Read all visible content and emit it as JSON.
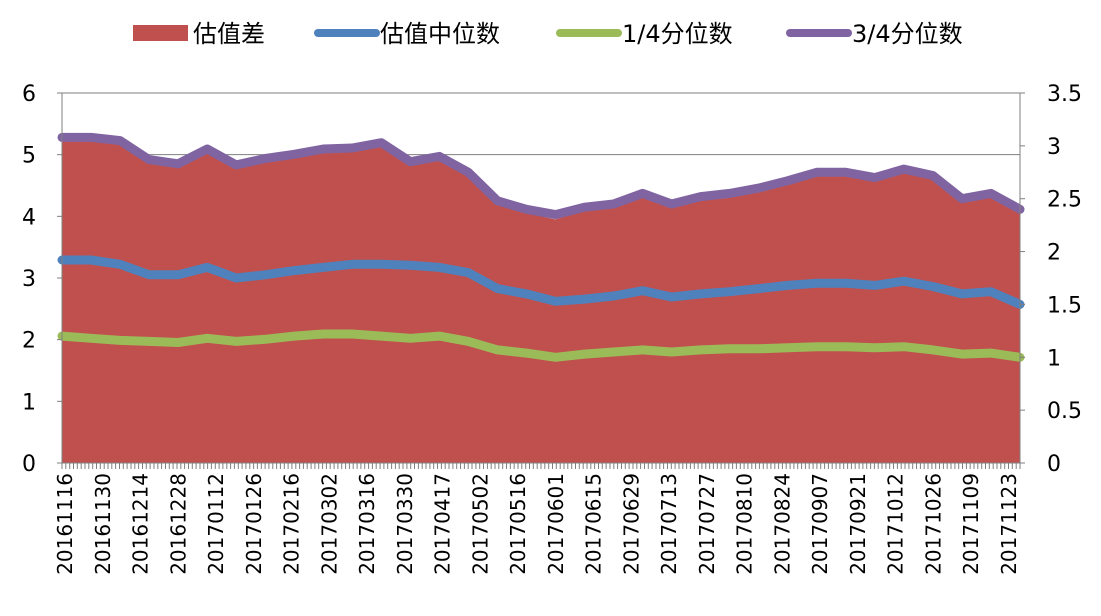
{
  "colors": {
    "diff": "#C0504D",
    "median": "#4F81BD",
    "q1": "#9BBB59",
    "q3": "#8064A2",
    "grid": "#7F7F7F",
    "axis": "#7F7F7F",
    "text": "#000000"
  },
  "chart_data": {
    "type": "area",
    "legend_position": "top",
    "grid": true,
    "y_left": {
      "min": 0,
      "max": 6,
      "ticks": [
        "0",
        "1",
        "2",
        "3",
        "4",
        "5",
        "6"
      ]
    },
    "y_right": {
      "min": 0,
      "max": 3.5,
      "ticks": [
        "0",
        "0.5",
        "1",
        "1.5",
        "2",
        "2.5",
        "3",
        "3.5"
      ]
    },
    "x_tick_labels": [
      "20161116",
      "20161130",
      "20161214",
      "20161228",
      "20170112",
      "20170126",
      "20170216",
      "20170302",
      "20170316",
      "20170330",
      "20170417",
      "20170502",
      "20170516",
      "20170601",
      "20170615",
      "20170629",
      "20170713",
      "20170727",
      "20170810",
      "20170824",
      "20170907",
      "20170921",
      "20171012",
      "20171026",
      "20171109",
      "20171123"
    ],
    "series": [
      {
        "name": "估值差",
        "type": "area",
        "axis": "left",
        "values": [
          5.3,
          5.3,
          5.25,
          4.9,
          4.85,
          5.05,
          4.85,
          4.95,
          5.0,
          5.1,
          5.1,
          5.2,
          4.9,
          4.95,
          4.7,
          4.2,
          4.05,
          3.95,
          4.1,
          4.2,
          4.3,
          4.15,
          4.25,
          4.3,
          4.45,
          4.55,
          4.65,
          4.7,
          4.6,
          4.75,
          4.65,
          4.35,
          4.4,
          4.15
        ]
      },
      {
        "name": "估值中位数",
        "type": "line",
        "axis": "right",
        "values": [
          1.92,
          1.92,
          1.88,
          1.78,
          1.78,
          1.85,
          1.75,
          1.78,
          1.82,
          1.85,
          1.88,
          1.88,
          1.87,
          1.85,
          1.8,
          1.65,
          1.6,
          1.53,
          1.55,
          1.58,
          1.63,
          1.57,
          1.6,
          1.62,
          1.65,
          1.68,
          1.7,
          1.7,
          1.68,
          1.72,
          1.67,
          1.6,
          1.62,
          1.5
        ]
      },
      {
        "name": "1/4分位数",
        "type": "line",
        "axis": "right",
        "values": [
          1.2,
          1.18,
          1.16,
          1.15,
          1.14,
          1.18,
          1.15,
          1.17,
          1.2,
          1.22,
          1.22,
          1.2,
          1.18,
          1.2,
          1.15,
          1.07,
          1.04,
          1.0,
          1.03,
          1.05,
          1.07,
          1.05,
          1.07,
          1.08,
          1.08,
          1.09,
          1.1,
          1.1,
          1.09,
          1.1,
          1.07,
          1.03,
          1.04,
          1.0
        ]
      },
      {
        "name": "3/4分位数",
        "type": "line",
        "axis": "right",
        "values": [
          3.08,
          3.08,
          3.05,
          2.87,
          2.83,
          2.97,
          2.82,
          2.88,
          2.92,
          2.97,
          2.98,
          3.03,
          2.85,
          2.9,
          2.75,
          2.48,
          2.4,
          2.35,
          2.42,
          2.45,
          2.55,
          2.45,
          2.52,
          2.55,
          2.6,
          2.67,
          2.75,
          2.75,
          2.7,
          2.78,
          2.72,
          2.5,
          2.55,
          2.4
        ]
      }
    ]
  }
}
